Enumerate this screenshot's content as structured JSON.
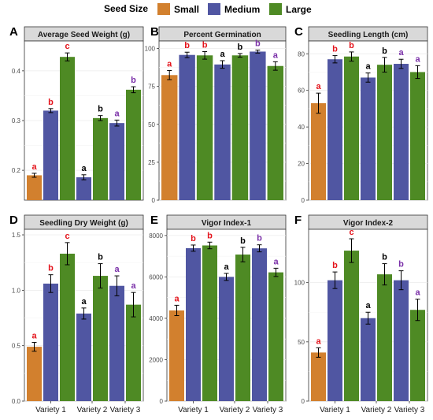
{
  "legend": {
    "title": "Seed Size",
    "items": [
      {
        "label": "Small",
        "color": "#D2802E"
      },
      {
        "label": "Medium",
        "color": "#5056A2"
      },
      {
        "label": "Large",
        "color": "#4E8A24"
      }
    ]
  },
  "chart_data": [
    {
      "type": "bar",
      "panel_letter": "A",
      "title": "Average Seed Weight (g)",
      "categories": [
        "Variety 1",
        "Variety 2",
        "Variety 3"
      ],
      "series": [
        {
          "name": "Small",
          "values": [
            0.19,
            null,
            null
          ],
          "errors": [
            0.004,
            null,
            null
          ],
          "letters": [
            "a",
            null,
            null
          ]
        },
        {
          "name": "Medium",
          "values": [
            0.32,
            0.186,
            0.295
          ],
          "errors": [
            0.004,
            0.005,
            0.006
          ],
          "letters": [
            "b",
            "a",
            "a"
          ]
        },
        {
          "name": "Large",
          "values": [
            0.428,
            0.305,
            0.362
          ],
          "errors": [
            0.008,
            0.005,
            0.006
          ],
          "letters": [
            "c",
            "b",
            "b"
          ]
        }
      ],
      "ylim": [
        0.14,
        0.46
      ],
      "yticks": [
        0.2,
        0.3,
        0.4
      ],
      "ytick_labels": [
        "0.2",
        "0.3",
        "0.4"
      ],
      "grid": true
    },
    {
      "type": "bar",
      "panel_letter": "B",
      "title": "Percent Germination",
      "categories": [
        "Variety 1",
        "Variety 2",
        "Variety 3"
      ],
      "series": [
        {
          "name": "Small",
          "values": [
            82.5,
            null,
            null
          ],
          "errors": [
            3,
            null,
            null
          ],
          "letters": [
            "a",
            null,
            null
          ]
        },
        {
          "name": "Medium",
          "values": [
            95.8,
            89.5,
            98
          ],
          "errors": [
            1.8,
            2.5,
            1
          ],
          "letters": [
            "b",
            "a",
            "b"
          ]
        },
        {
          "name": "Large",
          "values": [
            95.5,
            95.5,
            88.5
          ],
          "errors": [
            2.5,
            1.2,
            2.8
          ],
          "letters": [
            "b",
            "b",
            "a"
          ]
        }
      ],
      "ylim": [
        0,
        105
      ],
      "yticks": [
        0,
        25,
        50,
        75,
        100
      ],
      "ytick_labels": [
        "0",
        "25",
        "50",
        "75",
        "100"
      ],
      "grid": true
    },
    {
      "type": "bar",
      "panel_letter": "C",
      "title": "Seedling Length (cm)",
      "categories": [
        "Variety 1",
        "Variety 2",
        "Variety 3"
      ],
      "series": [
        {
          "name": "Small",
          "values": [
            53,
            null,
            null
          ],
          "errors": [
            5.5,
            null,
            null
          ],
          "letters": [
            "a",
            null,
            null
          ]
        },
        {
          "name": "Medium",
          "values": [
            77,
            67,
            74.5
          ],
          "errors": [
            2,
            2.5,
            2.5
          ],
          "letters": [
            "b",
            "a",
            "a"
          ]
        },
        {
          "name": "Large",
          "values": [
            78.5,
            74,
            70
          ],
          "errors": [
            2.5,
            4,
            3.5
          ],
          "letters": [
            "b",
            "b",
            "a"
          ]
        }
      ],
      "ylim": [
        0,
        87
      ],
      "yticks": [
        0,
        20,
        40,
        60,
        80
      ],
      "ytick_labels": [
        "0",
        "20",
        "40",
        "60",
        "80"
      ],
      "grid": true
    },
    {
      "type": "bar",
      "panel_letter": "D",
      "title": "Seedling Dry Weight (g)",
      "categories": [
        "Variety 1",
        "Variety 2",
        "Variety 3"
      ],
      "series": [
        {
          "name": "Small",
          "values": [
            0.49,
            null,
            null
          ],
          "errors": [
            0.04,
            null,
            null
          ],
          "letters": [
            "a",
            null,
            null
          ]
        },
        {
          "name": "Medium",
          "values": [
            1.06,
            0.79,
            1.04
          ],
          "errors": [
            0.08,
            0.05,
            0.09
          ],
          "letters": [
            "b",
            "a",
            "a"
          ]
        },
        {
          "name": "Large",
          "values": [
            1.33,
            1.13,
            0.87
          ],
          "errors": [
            0.1,
            0.11,
            0.11
          ],
          "letters": [
            "c",
            "b",
            "a"
          ]
        }
      ],
      "ylim": [
        0,
        1.55
      ],
      "yticks": [
        0,
        0.5,
        1.0,
        1.5
      ],
      "ytick_labels": [
        "0.0",
        "0.5",
        "1.0",
        "1.5"
      ],
      "grid": true
    },
    {
      "type": "bar",
      "panel_letter": "E",
      "title": "Vigor Index-1",
      "categories": [
        "Variety 1",
        "Variety 2",
        "Variety 3"
      ],
      "series": [
        {
          "name": "Small",
          "values": [
            4380,
            null,
            null
          ],
          "errors": [
            250,
            null,
            null
          ],
          "letters": [
            "a",
            null,
            null
          ]
        },
        {
          "name": "Medium",
          "values": [
            7390,
            6000,
            7380
          ],
          "errors": [
            150,
            170,
            170
          ],
          "letters": [
            "b",
            "a",
            "b"
          ]
        },
        {
          "name": "Large",
          "values": [
            7520,
            7080,
            6220
          ],
          "errors": [
            160,
            350,
            200
          ],
          "letters": [
            "b",
            "b",
            "a"
          ]
        }
      ],
      "ylim": [
        0,
        8300
      ],
      "yticks": [
        0,
        2000,
        4000,
        6000,
        8000
      ],
      "ytick_labels": [
        "0",
        "2000",
        "4000",
        "6000",
        "8000"
      ],
      "grid": true
    },
    {
      "type": "bar",
      "panel_letter": "F",
      "title": "Vigor Index-2",
      "categories": [
        "Variety 1",
        "Variety 2",
        "Variety 3"
      ],
      "series": [
        {
          "name": "Small",
          "values": [
            41,
            null,
            null
          ],
          "errors": [
            4,
            null,
            null
          ],
          "letters": [
            "a",
            null,
            null
          ]
        },
        {
          "name": "Medium",
          "values": [
            102,
            70,
            102
          ],
          "errors": [
            7,
            5,
            8
          ],
          "letters": [
            "b",
            "a",
            "b"
          ]
        },
        {
          "name": "Large",
          "values": [
            127,
            107,
            77
          ],
          "errors": [
            10,
            9,
            9
          ],
          "letters": [
            "c",
            "b",
            "a"
          ]
        }
      ],
      "ylim": [
        0,
        145
      ],
      "yticks": [
        0,
        50,
        100
      ],
      "ytick_labels": [
        "0",
        "50",
        "100"
      ],
      "grid": true
    }
  ]
}
